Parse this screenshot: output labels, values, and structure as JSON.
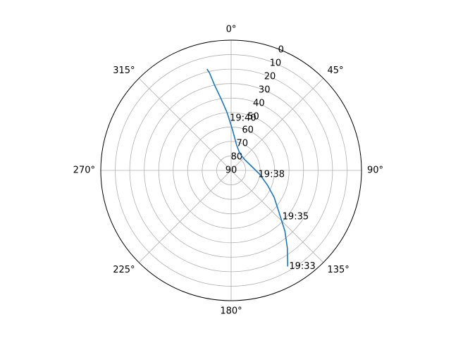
{
  "chart_data": {
    "type": "polar",
    "projection": "sky-plot",
    "theta_direction": "clockwise",
    "theta_zero": "top",
    "theta_tick_labels": [
      "0°",
      "45°",
      "90°",
      "135°",
      "180°",
      "225°",
      "270°",
      "315°"
    ],
    "theta_ticks_deg": [
      0,
      45,
      90,
      135,
      180,
      225,
      270,
      315
    ],
    "r_axis": "elevation",
    "r_lim": [
      90,
      0
    ],
    "r_tick_labels": [
      "0",
      "10",
      "20",
      "30",
      "40",
      "50",
      "60",
      "70",
      "80",
      "90"
    ],
    "r_ticks": [
      0,
      10,
      20,
      30,
      40,
      50,
      60,
      70,
      80,
      90
    ],
    "r_label_azimuth_deg": 22.5,
    "grid": true,
    "series": [
      {
        "color": "#1f77b4",
        "points": [
          {
            "az": 149.5,
            "el": 13
          },
          {
            "az": 144.0,
            "el": 24
          },
          {
            "az": 138.5,
            "el": 34
          },
          {
            "az": 132.0,
            "el": 45
          },
          {
            "az": 122.0,
            "el": 55
          },
          {
            "az": 112.0,
            "el": 63
          },
          {
            "az": 98.0,
            "el": 70
          },
          {
            "az": 76.0,
            "el": 76
          },
          {
            "az": 52.0,
            "el": 78
          },
          {
            "az": 28.0,
            "el": 77
          },
          {
            "az": 12.0,
            "el": 72
          },
          {
            "az": 2.0,
            "el": 62
          },
          {
            "az": -4.0,
            "el": 50
          },
          {
            "az": -8.0,
            "el": 40
          },
          {
            "az": -11.0,
            "el": 30
          },
          {
            "az": -12.5,
            "el": 21
          },
          {
            "az": -13.4,
            "el": 18
          }
        ]
      }
    ],
    "annotations": [
      {
        "text": "19:33",
        "az": 149.5,
        "el": 13
      },
      {
        "text": "19:35",
        "az": 133.0,
        "el": 43
      },
      {
        "text": "19:38",
        "az": 99.0,
        "el": 72
      },
      {
        "text": "19:40",
        "az": -3.0,
        "el": 54
      }
    ]
  }
}
